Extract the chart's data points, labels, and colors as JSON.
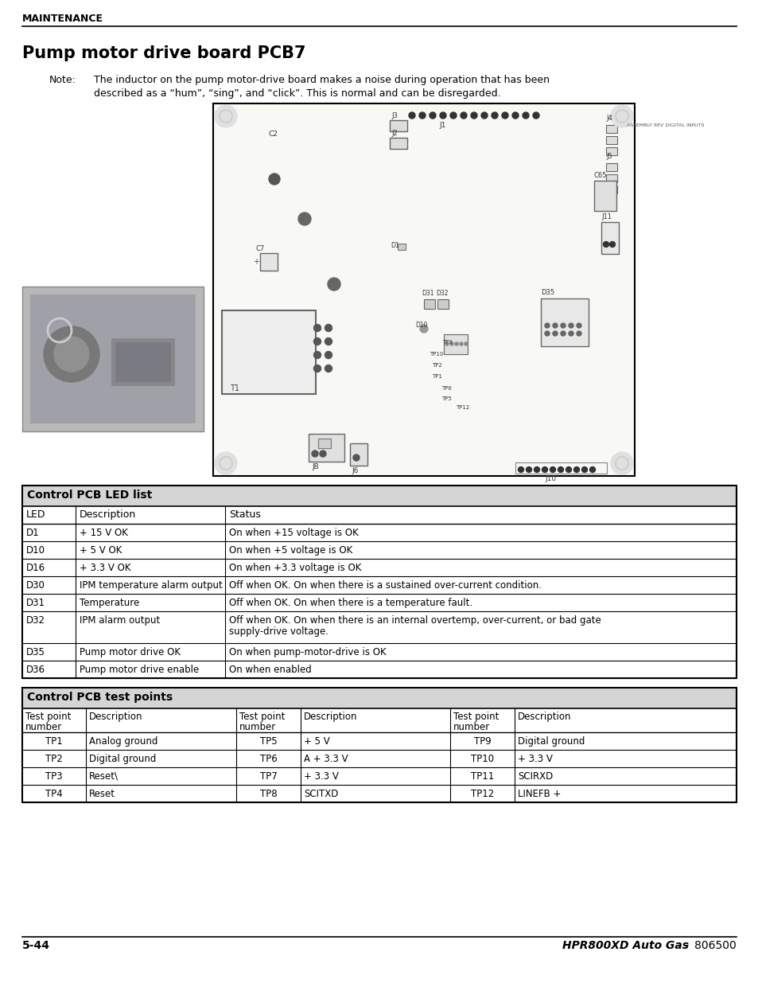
{
  "page_bg": "#ffffff",
  "header_text": "MAINTENANCE",
  "title_text": "Pump motor drive board PCB7",
  "note_label": "Note:",
  "note_text1": "The inductor on the pump motor-drive board makes a noise during operation that has been",
  "note_text2": "described as a “hum”, “sing”, and “click”. This is normal and can be disregarded.",
  "led_table_title": "Control PCB LED list",
  "led_headers": [
    "LED",
    "Description",
    "Status"
  ],
  "led_rows": [
    [
      "D1",
      "+ 15 V OK",
      "On when +15 voltage is OK"
    ],
    [
      "D10",
      "+ 5 V OK",
      "On when +5 voltage is OK"
    ],
    [
      "D16",
      "+ 3.3 V OK",
      "On when +3.3 voltage is OK"
    ],
    [
      "D30",
      "IPM temperature alarm output",
      "Off when OK. On when there is a sustained over-current condition."
    ],
    [
      "D31",
      "Temperature",
      "Off when OK. On when there is a temperature fault."
    ],
    [
      "D32",
      "IPM alarm output",
      "Off when OK. On when there is an internal overtemp, over-current, or bad gate\nsupply-drive voltage."
    ],
    [
      "D35",
      "Pump motor drive OK",
      "On when pump-motor-drive is OK"
    ],
    [
      "D36",
      "Pump motor drive enable",
      "On when enabled"
    ]
  ],
  "led_row_heights": [
    22,
    22,
    22,
    22,
    22,
    40,
    22,
    22
  ],
  "tp_table_title": "Control PCB test points",
  "tp_rows": [
    [
      "TP1",
      "Analog ground",
      "TP5",
      "+ 5 V",
      "TP9",
      "Digital ground"
    ],
    [
      "TP2",
      "Digital ground",
      "TP6",
      "A + 3.3 V",
      "TP10",
      "+ 3.3 V"
    ],
    [
      "TP3",
      "Reset\\",
      "TP7",
      "+ 3.3 V",
      "TP11",
      "SCIRXD"
    ],
    [
      "TP4",
      "Reset",
      "TP8",
      "SCITXD",
      "TP12",
      "LINEFB +"
    ]
  ],
  "footer_left": "5-44",
  "footer_right_italic": "HPR800XD Auto Gas",
  "footer_right_dash": " – ",
  "footer_right_normal": "806500"
}
